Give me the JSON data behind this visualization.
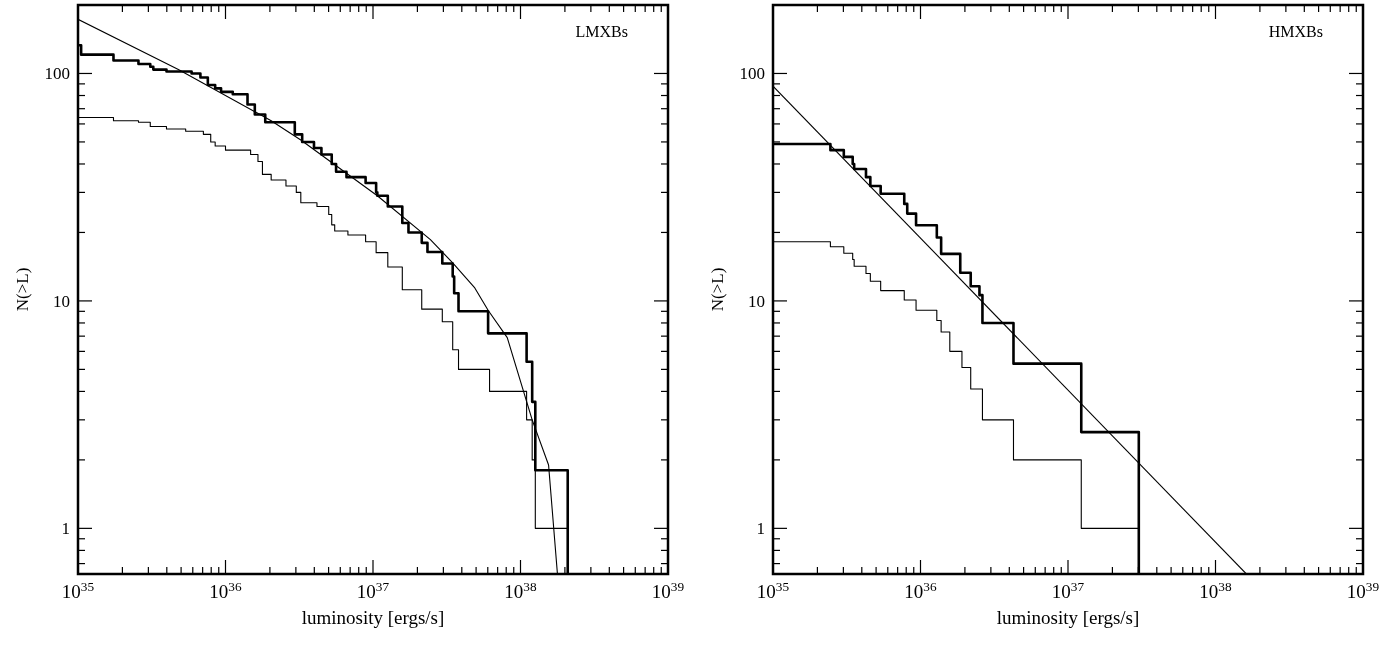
{
  "chart_data": [
    {
      "type": "step",
      "xlabel": "luminosity [ergs/s]",
      "ylabel": "N(>L)",
      "annotations": [
        "LMXBs"
      ],
      "log": "xy",
      "grid": false,
      "xlim": [
        1e+35,
        1e+39
      ],
      "ylim": [
        0.63,
        200
      ],
      "xticks": [
        {
          "value": 1e+35,
          "label": "10$^{35}$"
        },
        {
          "value": 2e+35,
          "label": null
        },
        {
          "value": 3e+35,
          "label": null
        },
        {
          "value": 4e+35,
          "label": null
        },
        {
          "value": 5e+35,
          "label": null
        },
        {
          "value": 6e+35,
          "label": null
        },
        {
          "value": 7e+35,
          "label": null
        },
        {
          "value": 8e+35,
          "label": null
        },
        {
          "value": 9e+35,
          "label": null
        },
        {
          "value": 1e+36,
          "label": "10$^{36}$"
        },
        {
          "value": 2e+36,
          "label": null
        },
        {
          "value": 3e+36,
          "label": null
        },
        {
          "value": 4e+36,
          "label": null
        },
        {
          "value": 5e+36,
          "label": null
        },
        {
          "value": 6e+36,
          "label": null
        },
        {
          "value": 7e+36,
          "label": null
        },
        {
          "value": 8e+36,
          "label": null
        },
        {
          "value": 9e+36,
          "label": null
        },
        {
          "value": 1e+37,
          "label": "10$^{37}$"
        },
        {
          "value": 2e+37,
          "label": null
        },
        {
          "value": 3e+37,
          "label": null
        },
        {
          "value": 4e+37,
          "label": null
        },
        {
          "value": 5e+37,
          "label": null
        },
        {
          "value": 6e+37,
          "label": null
        },
        {
          "value": 7e+37,
          "label": null
        },
        {
          "value": 8e+37,
          "label": null
        },
        {
          "value": 9e+37,
          "label": null
        },
        {
          "value": 1e+38,
          "label": "10$^{38}$"
        },
        {
          "value": 2e+38,
          "label": null
        },
        {
          "value": 3e+38,
          "label": null
        },
        {
          "value": 4e+38,
          "label": null
        },
        {
          "value": 5e+38,
          "label": null
        },
        {
          "value": 6e+38,
          "label": null
        },
        {
          "value": 7e+38,
          "label": null
        },
        {
          "value": 8e+38,
          "label": null
        },
        {
          "value": 9e+38,
          "label": null
        },
        {
          "value": 1e+39,
          "label": "10$^{39}$"
        }
      ],
      "yticks": [
        {
          "value": 0.7,
          "label": null
        },
        {
          "value": 0.8,
          "label": null
        },
        {
          "value": 0.9,
          "label": null
        },
        1,
        {
          "value": 2,
          "label": null
        },
        {
          "value": 3,
          "label": null
        },
        {
          "value": 4,
          "label": null
        },
        {
          "value": 5,
          "label": null
        },
        {
          "value": 6,
          "label": null
        },
        {
          "value": 7,
          "label": null
        },
        {
          "value": 8,
          "label": null
        },
        {
          "value": 9,
          "label": null
        },
        10,
        {
          "value": 20,
          "label": null
        },
        {
          "value": 30,
          "label": null
        },
        {
          "value": 40,
          "label": null
        },
        {
          "value": 50,
          "label": null
        },
        {
          "value": 60,
          "label": null
        },
        {
          "value": 70,
          "label": null
        },
        {
          "value": 80,
          "label": null
        },
        {
          "value": 90,
          "label": null
        },
        100,
        {
          "value": 200,
          "label": null
        }
      ],
      "series": [
        {
          "color": "#000000",
          "x": [
            1e+35,
            1.05e+35,
            1.74e+35,
            2.57e+35,
            3.09e+35,
            3.24e+35,
            3.98e+35,
            5.89e+35,
            6.76e+35,
            7.59e+35,
            8.51e+35,
            9.33e+35,
            1.12e+36,
            1.41e+36,
            1.58e+36,
            1.86e+36,
            2.95e+36,
            3.31e+36,
            3.98e+36,
            4.47e+36,
            5.25e+36,
            5.62e+36,
            6.61e+36,
            8.91e+36,
            1.05e+37,
            1.07e+37,
            1.26e+37,
            1.58e+37,
            1.74e+37,
            2.14e+37,
            2.34e+37,
            2.95e+37,
            3.47e+37,
            3.55e+37,
            3.8e+37,
            6.03e+37,
            1.1e+38,
            1.2e+38,
            1.26e+38,
            2.09e+38
          ],
          "values": [
            133,
            121,
            114,
            110,
            107,
            104,
            102,
            100,
            96,
            89,
            86,
            83,
            81,
            73,
            66,
            61,
            54,
            50,
            47,
            44,
            40,
            37,
            35,
            33,
            30,
            29,
            26,
            22,
            20,
            18,
            16.4,
            14.6,
            12.8,
            10.8,
            9,
            7.2,
            5.4,
            3.6,
            1.8,
            0.63
          ]
        },
        {
          "color": "#000000",
          "x": [
            1e+35,
            1.74e+35,
            2.57e+35,
            3.09e+35,
            3.98e+35,
            5.37e+35,
            7.08e+35,
            7.94e+35,
            8.51e+35,
            1e+36,
            1.48e+36,
            1.66e+36,
            1.78e+36,
            2.04e+36,
            2.57e+36,
            3.02e+36,
            3.24e+36,
            4.17e+36,
            5.01e+36,
            5.25e+36,
            5.5e+36,
            6.76e+36,
            8.91e+36,
            1.05e+37,
            1.26e+37,
            1.58e+37,
            2.14e+37,
            2.95e+37,
            3.47e+37,
            3.8e+37,
            6.17e+37,
            1.1e+38,
            1.2e+38,
            1.26e+38,
            2.09e+38
          ],
          "values": [
            64,
            62,
            61,
            58.5,
            57,
            55.7,
            54,
            50,
            48,
            46,
            44,
            41,
            36,
            34,
            32,
            30,
            27,
            26,
            24,
            21.6,
            20.3,
            19.5,
            18.2,
            16.3,
            14.1,
            11.2,
            9.2,
            8.1,
            6.1,
            5,
            4,
            3,
            2,
            1,
            0.63
          ]
        },
        {
          "type": "line",
          "color": "#000000",
          "x": [
            1e+35,
            4.79e+35,
            2.04e+36,
            3.24e+36,
            1.07e+37,
            2.45e+37,
            3.47e+37,
            4.9e+37,
            6.03e+37,
            8.13e+37,
            1.2e+38,
            1.55e+38,
            1.78e+38
          ],
          "values": [
            173,
            104,
            62,
            51,
            29,
            18.6,
            14.7,
            11.4,
            9.1,
            6.9,
            3,
            1.9,
            0.63
          ]
        }
      ]
    },
    {
      "type": "step",
      "xlabel": "luminosity [ergs/s]",
      "ylabel": "N(>L)",
      "annotations": [
        "HMXBs"
      ],
      "log": "xy",
      "grid": false,
      "xlim": [
        1e+35,
        1e+39
      ],
      "ylim": [
        0.63,
        200
      ],
      "xticks": [
        {
          "value": 1e+35,
          "label": "10$^{35}$"
        },
        {
          "value": 2e+35,
          "label": null
        },
        {
          "value": 3e+35,
          "label": null
        },
        {
          "value": 4e+35,
          "label": null
        },
        {
          "value": 5e+35,
          "label": null
        },
        {
          "value": 6e+35,
          "label": null
        },
        {
          "value": 7e+35,
          "label": null
        },
        {
          "value": 8e+35,
          "label": null
        },
        {
          "value": 9e+35,
          "label": null
        },
        {
          "value": 1e+36,
          "label": "10$^{36}$"
        },
        {
          "value": 2e+36,
          "label": null
        },
        {
          "value": 3e+36,
          "label": null
        },
        {
          "value": 4e+36,
          "label": null
        },
        {
          "value": 5e+36,
          "label": null
        },
        {
          "value": 6e+36,
          "label": null
        },
        {
          "value": 7e+36,
          "label": null
        },
        {
          "value": 8e+36,
          "label": null
        },
        {
          "value": 9e+36,
          "label": null
        },
        {
          "value": 1e+37,
          "label": "10$^{37}$"
        },
        {
          "value": 2e+37,
          "label": null
        },
        {
          "value": 3e+37,
          "label": null
        },
        {
          "value": 4e+37,
          "label": null
        },
        {
          "value": 5e+37,
          "label": null
        },
        {
          "value": 6e+37,
          "label": null
        },
        {
          "value": 7e+37,
          "label": null
        },
        {
          "value": 8e+37,
          "label": null
        },
        {
          "value": 9e+37,
          "label": null
        },
        {
          "value": 1e+38,
          "label": "10$^{38}$"
        },
        {
          "value": 2e+38,
          "label": null
        },
        {
          "value": 3e+38,
          "label": null
        },
        {
          "value": 4e+38,
          "label": null
        },
        {
          "value": 5e+38,
          "label": null
        },
        {
          "value": 6e+38,
          "label": null
        },
        {
          "value": 7e+38,
          "label": null
        },
        {
          "value": 8e+38,
          "label": null
        },
        {
          "value": 9e+38,
          "label": null
        },
        {
          "value": 1e+39,
          "label": "10$^{39}$"
        }
      ],
      "yticks": [
        {
          "value": 0.7,
          "label": null
        },
        {
          "value": 0.8,
          "label": null
        },
        {
          "value": 0.9,
          "label": null
        },
        1,
        {
          "value": 2,
          "label": null
        },
        {
          "value": 3,
          "label": null
        },
        {
          "value": 4,
          "label": null
        },
        {
          "value": 5,
          "label": null
        },
        {
          "value": 6,
          "label": null
        },
        {
          "value": 7,
          "label": null
        },
        {
          "value": 8,
          "label": null
        },
        {
          "value": 9,
          "label": null
        },
        10,
        {
          "value": 20,
          "label": null
        },
        {
          "value": 30,
          "label": null
        },
        {
          "value": 40,
          "label": null
        },
        {
          "value": 50,
          "label": null
        },
        {
          "value": 60,
          "label": null
        },
        {
          "value": 70,
          "label": null
        },
        {
          "value": 80,
          "label": null
        },
        {
          "value": 90,
          "label": null
        },
        100,
        {
          "value": 200,
          "label": null
        }
      ],
      "series": [
        {
          "color": "#000000",
          "x": [
            1e+35,
            2.45e+35,
            3.02e+35,
            3.47e+35,
            3.55e+35,
            4.27e+35,
            4.57e+35,
            5.37e+35,
            7.76e+35,
            8.13e+35,
            9.33e+35,
            1.29e+36,
            1.38e+36,
            1.86e+36,
            2.19e+36,
            2.51e+36,
            2.63e+36,
            4.27e+36,
            1.23e+37,
            3.02e+37
          ],
          "values": [
            49,
            46,
            43,
            40,
            38,
            35,
            32,
            29.6,
            26.7,
            24.2,
            21.5,
            19,
            16.1,
            13.3,
            11.6,
            10.6,
            8,
            5.3,
            2.65,
            0.63
          ]
        },
        {
          "color": "#000000",
          "x": [
            1e+35,
            2.45e+35,
            3.02e+35,
            3.47e+35,
            3.55e+35,
            4.27e+35,
            4.57e+35,
            5.37e+35,
            7.76e+35,
            9.33e+35,
            1.29e+36,
            1.38e+36,
            1.58e+36,
            1.91e+36,
            2.19e+36,
            2.63e+36,
            4.27e+36,
            1.23e+37,
            3.02e+37
          ],
          "values": [
            18.2,
            17.3,
            16.2,
            15.2,
            14.2,
            13.2,
            12.2,
            11.1,
            10.1,
            9.1,
            8.2,
            7.3,
            6,
            5.1,
            4.1,
            3,
            2,
            1,
            0.63
          ]
        },
        {
          "type": "line",
          "color": "#000000",
          "x": [
            1e+35,
            1.62e+38
          ],
          "values": [
            88,
            0.63
          ]
        }
      ]
    }
  ]
}
